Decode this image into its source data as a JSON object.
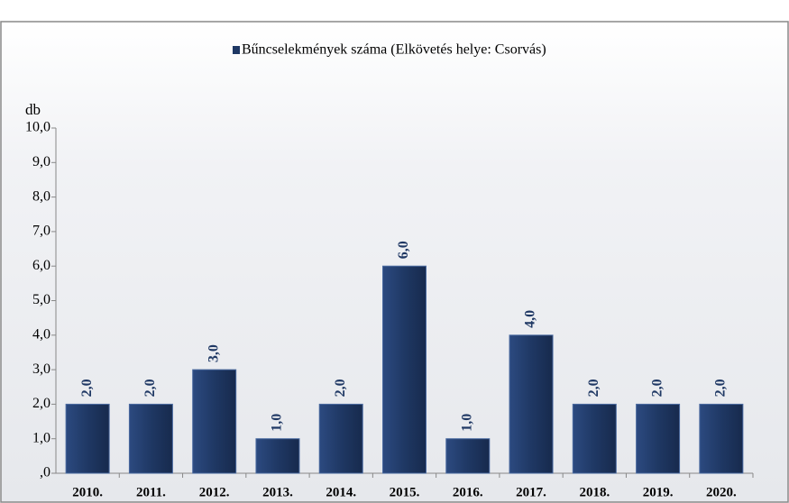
{
  "chart_data": {
    "type": "bar",
    "y_label": "db",
    "legend_label": "Bűncselekmények száma (Elkövetés helye: Csorvás)",
    "categories": [
      "2010.",
      "2011.",
      "2012.",
      "2013.",
      "2014.",
      "2015.",
      "2016.",
      "2017.",
      "2018.",
      "2019.",
      "2020."
    ],
    "series": [
      {
        "name": "Bűncselekmények száma (Elkövetés helye: Csorvás)",
        "color": "#1f3864",
        "values": [
          2,
          2,
          3,
          1,
          2,
          6,
          1,
          4,
          2,
          2,
          2
        ],
        "value_labels": [
          "2,0",
          "2,0",
          "3,0",
          "1,0",
          "2,0",
          "6,0",
          "1,0",
          "4,0",
          "2,0",
          "2,0",
          "2,0"
        ]
      }
    ],
    "ylim": [
      0,
      10
    ],
    "yticks": [
      {
        "value": 0,
        "label": ",0"
      },
      {
        "value": 1,
        "label": "1,0"
      },
      {
        "value": 2,
        "label": "2,0"
      },
      {
        "value": 3,
        "label": "3,0"
      },
      {
        "value": 4,
        "label": "4,0"
      },
      {
        "value": 5,
        "label": "5,0"
      },
      {
        "value": 6,
        "label": "6,0"
      },
      {
        "value": 7,
        "label": "7,0"
      },
      {
        "value": 8,
        "label": "8,0"
      },
      {
        "value": 9,
        "label": "9,0"
      },
      {
        "value": 10,
        "label": "10,0"
      }
    ]
  }
}
